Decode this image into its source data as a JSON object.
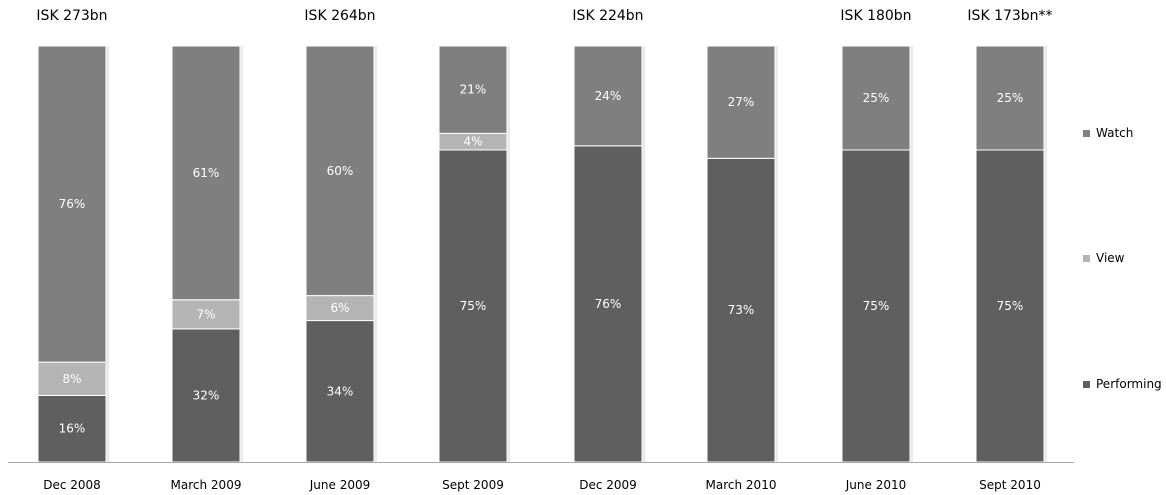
{
  "chart_data": {
    "type": "bar",
    "stacked": true,
    "normalized": true,
    "categories": [
      "Dec 2008",
      "March 2009",
      "June 2009",
      "Sept 2009",
      "Dec 2009",
      "March 2010",
      "June 2010",
      "Sept 2010"
    ],
    "totals": [
      "ISK 273bn",
      "",
      "ISK 264bn",
      "",
      "ISK 224bn",
      "",
      "ISK 180bn",
      "ISK 173bn**"
    ],
    "series": [
      {
        "name": "Performing",
        "values": [
          16,
          32,
          34,
          75,
          76,
          73,
          75,
          75
        ],
        "labels": [
          "16%",
          "32%",
          "34%",
          "75%",
          "76%",
          "73%",
          "75%",
          "75%"
        ],
        "color": "#5f5f5f"
      },
      {
        "name": "View",
        "values": [
          8,
          7,
          6,
          4,
          0,
          0,
          0,
          0
        ],
        "labels": [
          "8%",
          "7%",
          "6%",
          "4%",
          "",
          "",
          "",
          ""
        ],
        "color": "#b4b4b4"
      },
      {
        "name": "Watch",
        "values": [
          76,
          61,
          60,
          21,
          24,
          27,
          25,
          25
        ],
        "labels": [
          "76%",
          "61%",
          "60%",
          "21%",
          "24%",
          "27%",
          "25%",
          "25%"
        ],
        "color": "#7f7f7f"
      }
    ],
    "ylim": [
      0,
      100
    ],
    "legend": {
      "position": "right",
      "order": [
        "Watch",
        "View",
        "Performing"
      ]
    },
    "grid": false
  }
}
